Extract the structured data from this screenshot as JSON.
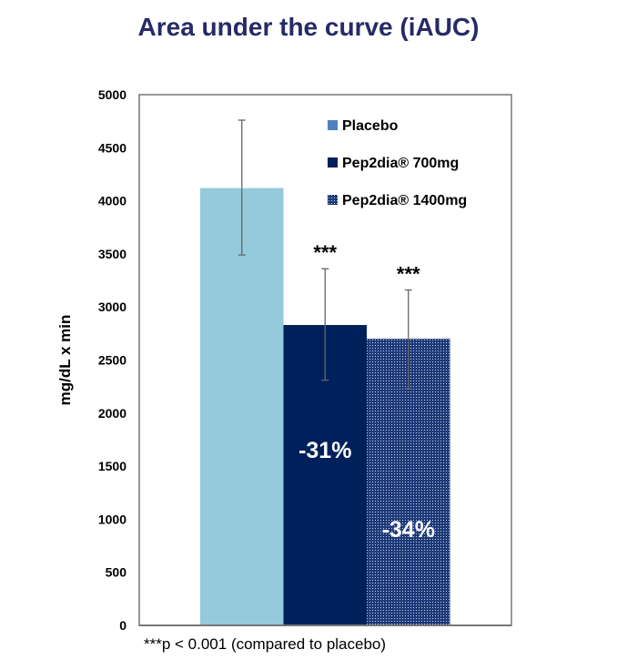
{
  "chart_data": {
    "type": "bar",
    "title": "Area under the curve  (iAUC)",
    "xlabel": "",
    "ylabel": "mg/dL x min",
    "ylim": [
      0,
      5000
    ],
    "yticks": [
      0,
      500,
      1000,
      1500,
      2000,
      2500,
      3000,
      3500,
      4000,
      4500,
      5000
    ],
    "categories": [
      "Placebo",
      "Pep2dia® 700mg",
      "Pep2dia® 1400mg"
    ],
    "values": [
      4120,
      2830,
      2700
    ],
    "error_upper": [
      4760,
      3360,
      3160
    ],
    "error_lower": [
      3490,
      2310,
      2230
    ],
    "significance": [
      "",
      "***",
      "***"
    ],
    "bar_labels": [
      "",
      "-31%",
      "-34%"
    ],
    "legend": {
      "placement": "top-right",
      "entries": [
        "Placebo",
        "Pep2dia® 700mg",
        "Pep2dia® 1400mg"
      ]
    },
    "colors": [
      "#94cadb",
      "#00205b",
      "#2a4a8a"
    ],
    "legend_colors": [
      "#4f81bd",
      "#00205b",
      "#2a4a8a"
    ],
    "footnote": "***p < 0.001 (compared to placebo)",
    "grid": false
  }
}
